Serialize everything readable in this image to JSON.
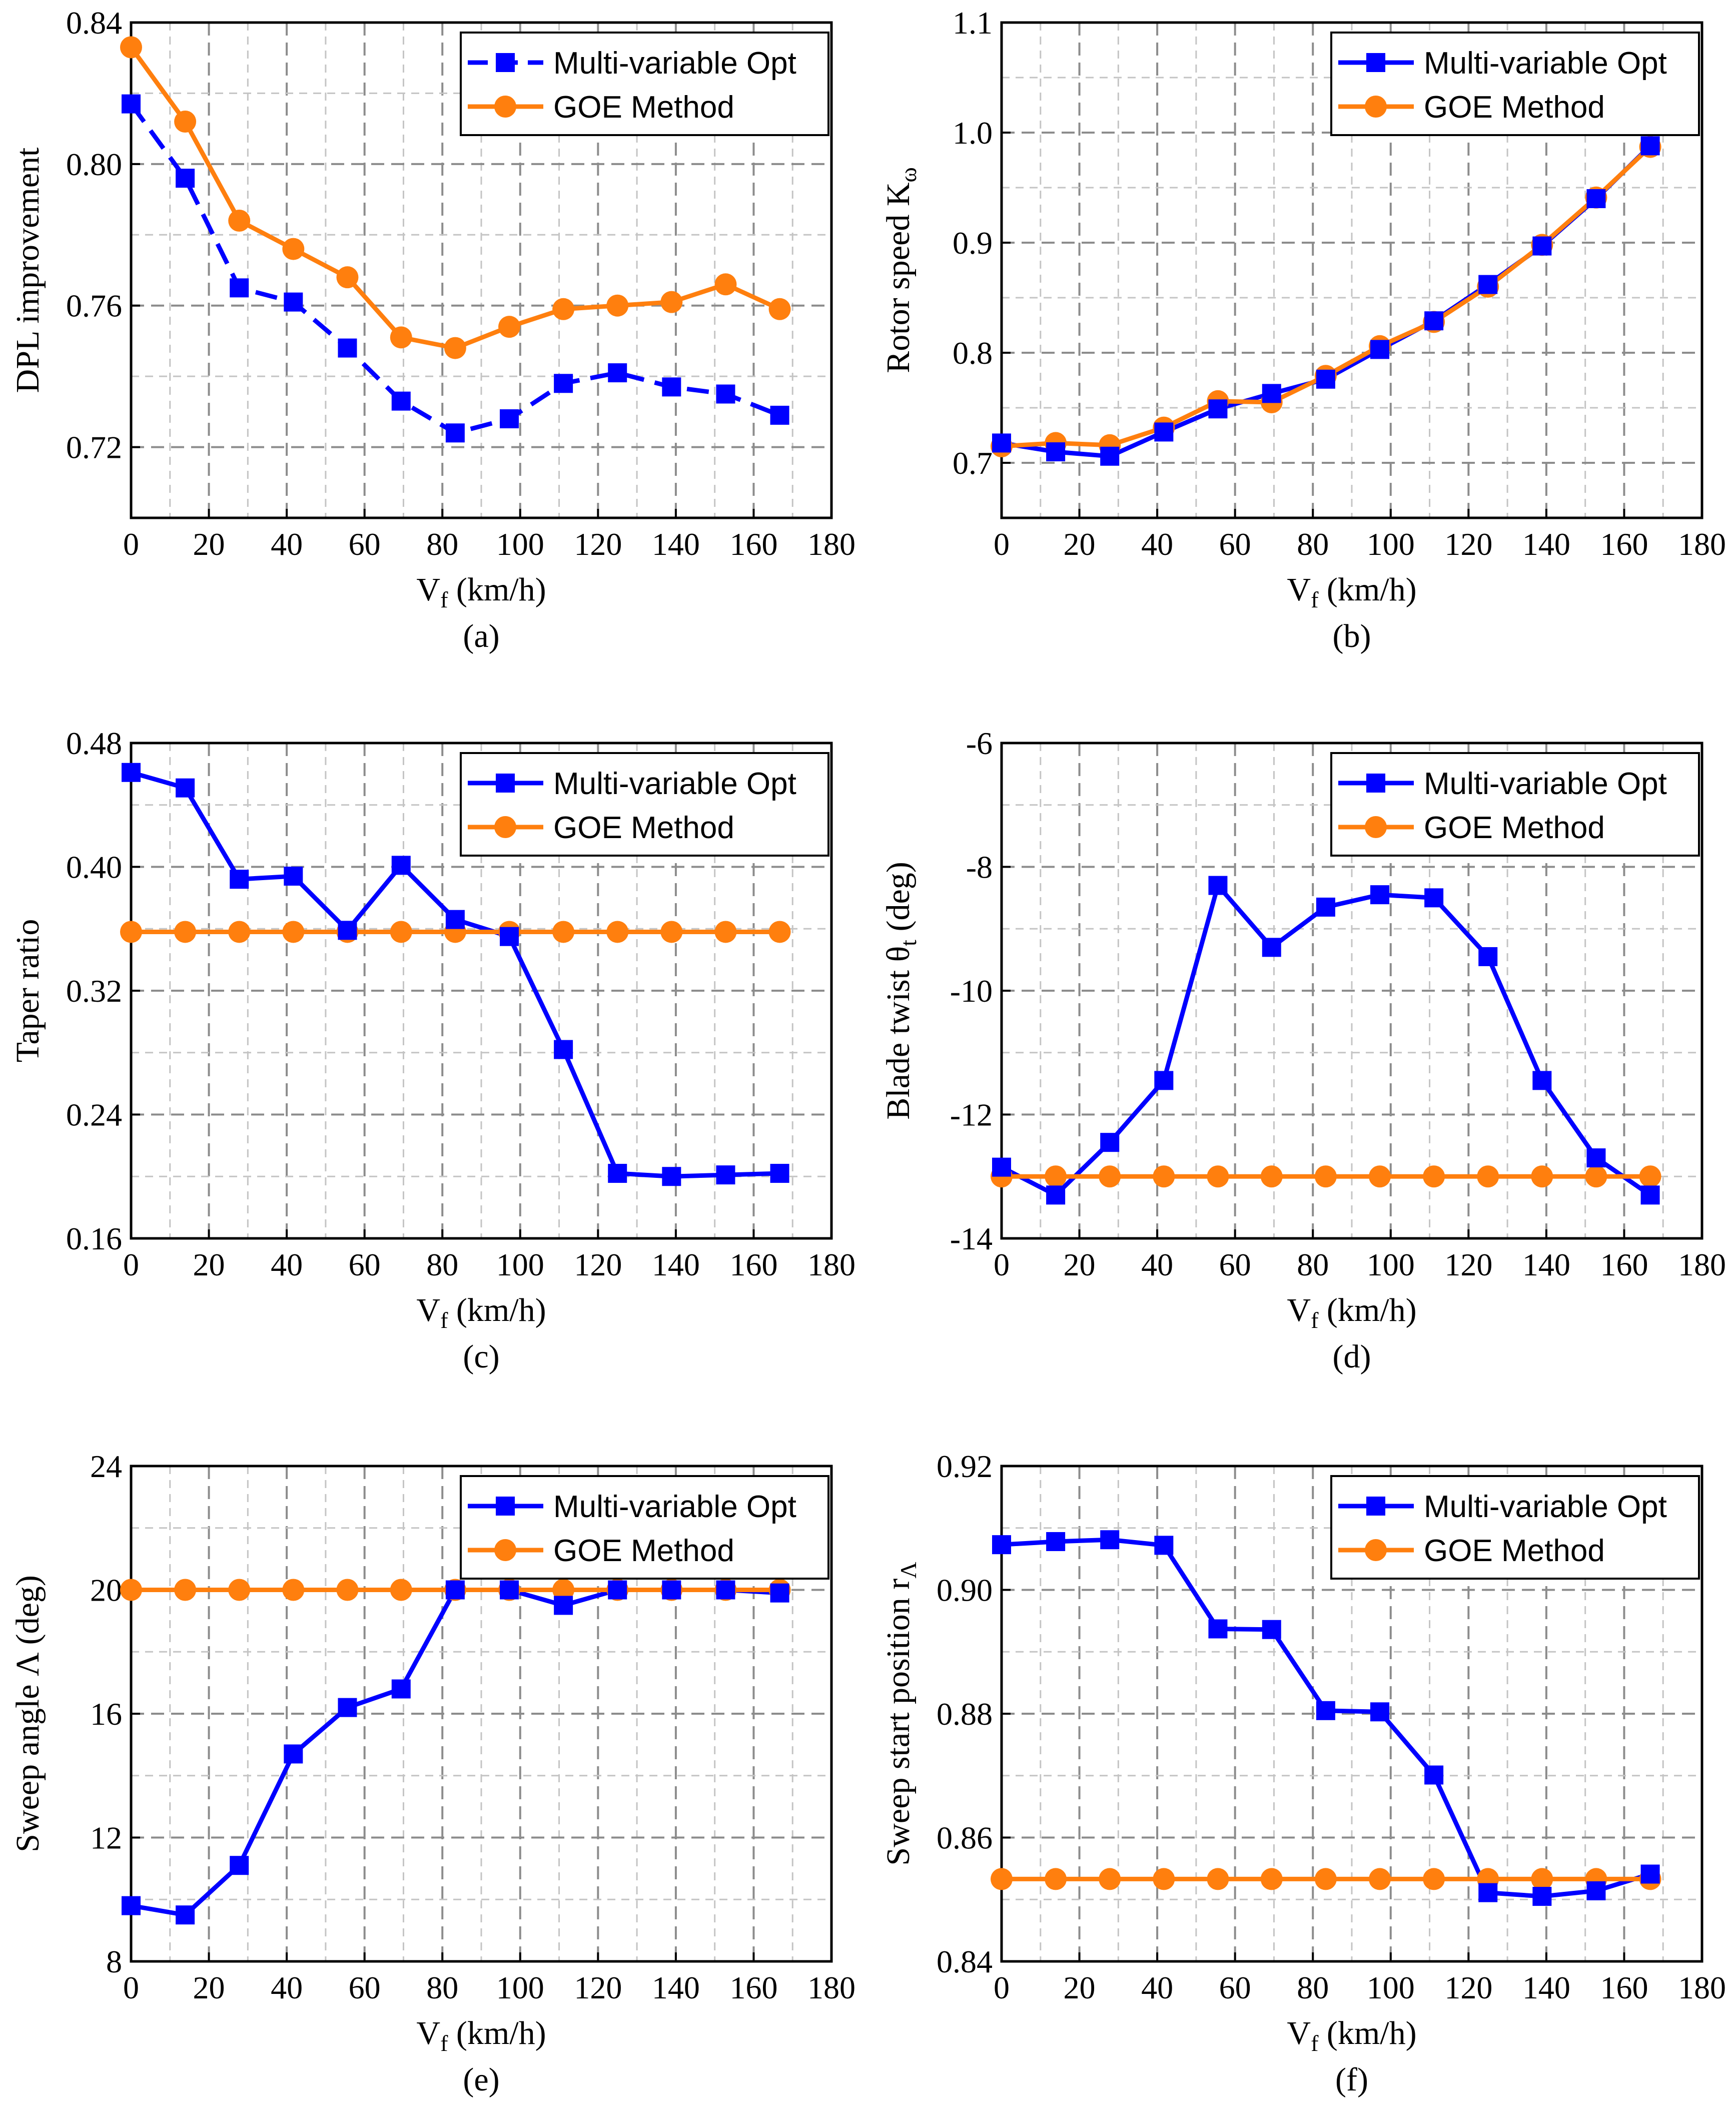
{
  "colors": {
    "multi": "#0000FF",
    "goe": "#FF7F0E",
    "grid": "#999999",
    "frame": "#000000"
  },
  "chart_data": [
    {
      "id": "a",
      "type": "line",
      "panel_label": "(a)",
      "xlabel": "V",
      "xlabel_sub": "f",
      "xlabel_unit": " (km/h)",
      "ylabel": "DPL improvement",
      "xlim": [
        0,
        180
      ],
      "ylim": [
        0.7,
        0.84
      ],
      "xticks": [
        0,
        20,
        40,
        60,
        80,
        100,
        120,
        140,
        160,
        180
      ],
      "yticks": [
        0.72,
        0.76,
        0.8,
        0.84
      ],
      "yticks_labels": [
        "0.72",
        "0.76",
        "0.80",
        "0.84"
      ],
      "x": [
        0,
        13.9,
        27.8,
        41.7,
        55.6,
        69.4,
        83.3,
        97.2,
        111.1,
        125,
        138.9,
        152.8,
        166.7
      ],
      "series": [
        {
          "name": "Multi-variable Opt",
          "dashed": true,
          "values": [
            0.817,
            0.796,
            0.765,
            0.761,
            0.748,
            0.733,
            0.724,
            0.728,
            0.738,
            0.741,
            0.737,
            0.735,
            0.729
          ]
        },
        {
          "name": "GOE Method",
          "dashed": false,
          "values": [
            0.833,
            0.812,
            0.784,
            0.776,
            0.768,
            0.751,
            0.748,
            0.754,
            0.759,
            0.76,
            0.761,
            0.766,
            0.759
          ]
        }
      ],
      "legend": "top-right"
    },
    {
      "id": "b",
      "type": "line",
      "panel_label": "(b)",
      "xlabel": "V",
      "xlabel_sub": "f",
      "xlabel_unit": " (km/h)",
      "ylabel": "Rotor speed K",
      "ylabel_sub": "ω",
      "xlim": [
        0,
        180
      ],
      "ylim": [
        0.65,
        1.1
      ],
      "xticks": [
        0,
        20,
        40,
        60,
        80,
        100,
        120,
        140,
        160,
        180
      ],
      "yticks": [
        0.7,
        0.8,
        0.9,
        1.0,
        1.1
      ],
      "yticks_labels": [
        "0.7",
        "0.8",
        "0.9",
        "1.0",
        "1.1"
      ],
      "x": [
        0,
        13.9,
        27.8,
        41.7,
        55.6,
        69.4,
        83.3,
        97.2,
        111.1,
        125,
        138.9,
        152.8,
        166.7
      ],
      "series": [
        {
          "name": "Multi-variable Opt",
          "dashed": false,
          "values": [
            0.718,
            0.71,
            0.706,
            0.728,
            0.749,
            0.763,
            0.776,
            0.803,
            0.829,
            0.862,
            0.897,
            0.94,
            0.988
          ]
        },
        {
          "name": "GOE Method",
          "dashed": false,
          "values": [
            0.715,
            0.718,
            0.716,
            0.732,
            0.756,
            0.755,
            0.779,
            0.806,
            0.828,
            0.86,
            0.898,
            0.941,
            0.987
          ]
        }
      ],
      "legend": "top-right"
    },
    {
      "id": "c",
      "type": "line",
      "panel_label": "(c)",
      "xlabel": "V",
      "xlabel_sub": "f",
      "xlabel_unit": " (km/h)",
      "ylabel": "Taper ratio",
      "xlim": [
        0,
        180
      ],
      "ylim": [
        0.16,
        0.48
      ],
      "xticks": [
        0,
        20,
        40,
        60,
        80,
        100,
        120,
        140,
        160,
        180
      ],
      "yticks": [
        0.16,
        0.24,
        0.32,
        0.4,
        0.48
      ],
      "yticks_labels": [
        "0.16",
        "0.24",
        "0.32",
        "0.40",
        "0.48"
      ],
      "x": [
        0,
        13.9,
        27.8,
        41.7,
        55.6,
        69.4,
        83.3,
        97.2,
        111.1,
        125,
        138.9,
        152.8,
        166.7
      ],
      "series": [
        {
          "name": "Multi-variable Opt",
          "dashed": false,
          "values": [
            0.461,
            0.451,
            0.392,
            0.394,
            0.359,
            0.401,
            0.366,
            0.355,
            0.282,
            0.202,
            0.2,
            0.201,
            0.202
          ]
        },
        {
          "name": "GOE Method",
          "dashed": false,
          "values": [
            0.358,
            0.358,
            0.358,
            0.358,
            0.358,
            0.358,
            0.358,
            0.358,
            0.358,
            0.358,
            0.358,
            0.358,
            0.358
          ]
        }
      ],
      "legend": "top-right"
    },
    {
      "id": "d",
      "type": "line",
      "panel_label": "(d)",
      "xlabel": "V",
      "xlabel_sub": "f",
      "xlabel_unit": " (km/h)",
      "ylabel": "Blade twist θ",
      "ylabel_sub": "t",
      "ylabel_unit": " (deg)",
      "xlim": [
        0,
        180
      ],
      "ylim": [
        -14,
        -6
      ],
      "xticks": [
        0,
        20,
        40,
        60,
        80,
        100,
        120,
        140,
        160,
        180
      ],
      "yticks": [
        -14,
        -12,
        -10,
        -8,
        -6
      ],
      "yticks_labels": [
        "-14",
        "-12",
        "-10",
        "-8",
        "-6"
      ],
      "x": [
        0,
        13.9,
        27.8,
        41.7,
        55.6,
        69.4,
        83.3,
        97.2,
        111.1,
        125,
        138.9,
        152.8,
        166.7
      ],
      "series": [
        {
          "name": "Multi-variable Opt",
          "dashed": false,
          "values": [
            -12.85,
            -13.3,
            -12.45,
            -11.45,
            -8.3,
            -9.3,
            -8.65,
            -8.45,
            -8.5,
            -9.45,
            -11.45,
            -12.7,
            -13.3
          ]
        },
        {
          "name": "GOE Method",
          "dashed": false,
          "values": [
            -13.0,
            -13.0,
            -13.0,
            -13.0,
            -13.0,
            -13.0,
            -13.0,
            -13.0,
            -13.0,
            -13.0,
            -13.0,
            -13.0,
            -13.0
          ]
        }
      ],
      "legend": "top-right"
    },
    {
      "id": "e",
      "type": "line",
      "panel_label": "(e)",
      "xlabel": "V",
      "xlabel_sub": "f",
      "xlabel_unit": " (km/h)",
      "ylabel": "Sweep angle Λ (deg)",
      "xlim": [
        0,
        180
      ],
      "ylim": [
        8,
        24
      ],
      "xticks": [
        0,
        20,
        40,
        60,
        80,
        100,
        120,
        140,
        160,
        180
      ],
      "yticks": [
        8,
        12,
        16,
        20,
        24
      ],
      "yticks_labels": [
        "8",
        "12",
        "16",
        "20",
        "24"
      ],
      "x": [
        0,
        13.9,
        27.8,
        41.7,
        55.6,
        69.4,
        83.3,
        97.2,
        111.1,
        125,
        138.9,
        152.8,
        166.7
      ],
      "series": [
        {
          "name": "Multi-variable Opt",
          "dashed": false,
          "values": [
            9.8,
            9.5,
            11.1,
            14.7,
            16.2,
            16.8,
            20.0,
            20.0,
            19.5,
            20.0,
            20.0,
            20.0,
            19.9
          ]
        },
        {
          "name": "GOE Method",
          "dashed": false,
          "values": [
            20.0,
            20.0,
            20.0,
            20.0,
            20.0,
            20.0,
            20.0,
            20.0,
            20.0,
            20.0,
            20.0,
            20.0,
            20.0
          ]
        }
      ],
      "legend": "top-right"
    },
    {
      "id": "f",
      "type": "line",
      "panel_label": "(f)",
      "xlabel": "V",
      "xlabel_sub": "f",
      "xlabel_unit": " (km/h)",
      "ylabel": "Sweep start position r",
      "ylabel_sub": "Λ",
      "xlim": [
        0,
        180
      ],
      "ylim": [
        0.84,
        0.92
      ],
      "xticks": [
        0,
        20,
        40,
        60,
        80,
        100,
        120,
        140,
        160,
        180
      ],
      "yticks": [
        0.84,
        0.86,
        0.88,
        0.9,
        0.92
      ],
      "yticks_labels": [
        "0.84",
        "0.86",
        "0.88",
        "0.90",
        "0.92"
      ],
      "x": [
        0,
        13.9,
        27.8,
        41.7,
        55.6,
        69.4,
        83.3,
        97.2,
        111.1,
        125,
        138.9,
        152.8,
        166.7
      ],
      "series": [
        {
          "name": "Multi-variable Opt",
          "dashed": false,
          "values": [
            0.9073,
            0.9078,
            0.9081,
            0.9072,
            0.8937,
            0.8936,
            0.8805,
            0.8803,
            0.8701,
            0.8511,
            0.8505,
            0.8514,
            0.8541
          ]
        },
        {
          "name": "GOE Method",
          "dashed": false,
          "values": [
            0.8533,
            0.8533,
            0.8533,
            0.8533,
            0.8533,
            0.8533,
            0.8533,
            0.8533,
            0.8533,
            0.8533,
            0.8533,
            0.8533,
            0.8533
          ]
        }
      ],
      "legend": "top-right"
    }
  ]
}
